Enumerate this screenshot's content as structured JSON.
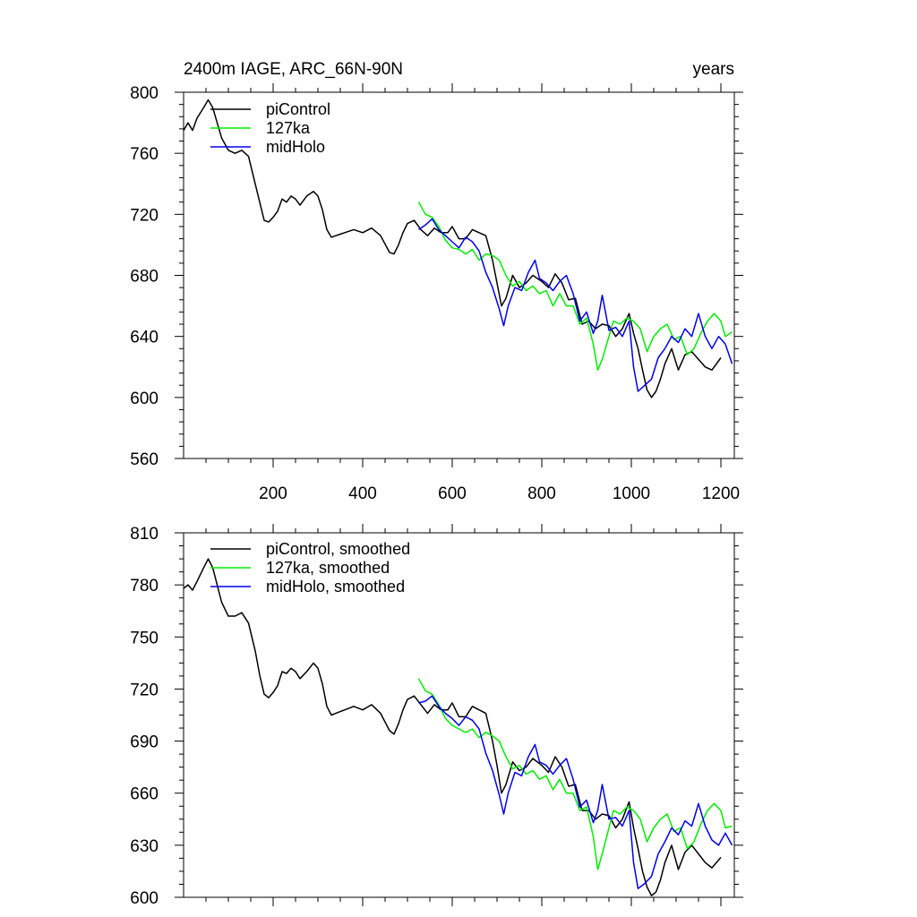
{
  "chart_data": [
    {
      "type": "line",
      "title_left": "2400m IAGE, ARC_66N-90N",
      "title_right": "years",
      "xlabel": "",
      "ylabel": "",
      "xlim": [
        0,
        1230
      ],
      "ylim": [
        560,
        800
      ],
      "xticks": [
        200,
        400,
        600,
        800,
        1000,
        1200
      ],
      "xtick_labels": [
        "200",
        "400",
        "600",
        "800",
        "1000",
        "1200"
      ],
      "yticks": [
        560,
        600,
        640,
        680,
        720,
        760,
        800
      ],
      "ytick_labels": [
        "560",
        "600",
        "640",
        "680",
        "720",
        "760",
        "800"
      ],
      "legend": "top-left",
      "series": [
        {
          "name": "piControl",
          "color": "#000000",
          "x": [
            0,
            10,
            20,
            30,
            45,
            55,
            65,
            75,
            85,
            100,
            115,
            130,
            145,
            160,
            170,
            180,
            190,
            200,
            210,
            220,
            230,
            240,
            250,
            260,
            275,
            290,
            300,
            310,
            320,
            330,
            340,
            350,
            360,
            380,
            400,
            420,
            440,
            460,
            470,
            480,
            490,
            500,
            515,
            530,
            545,
            560,
            575,
            590,
            600,
            615,
            630,
            645,
            660,
            675,
            690,
            700,
            710,
            720,
            735,
            750,
            765,
            780,
            800,
            815,
            830,
            845,
            860,
            875,
            890,
            905,
            920,
            935,
            950,
            965,
            980,
            995,
            1005,
            1015,
            1025,
            1035,
            1045,
            1055,
            1065,
            1075,
            1090,
            1105,
            1120,
            1135,
            1150,
            1165,
            1180,
            1200
          ],
          "y": [
            775,
            780,
            775,
            783,
            790,
            795,
            790,
            780,
            770,
            762,
            760,
            762,
            758,
            740,
            728,
            716,
            715,
            718,
            722,
            730,
            728,
            732,
            730,
            726,
            732,
            735,
            732,
            723,
            710,
            705,
            706,
            707,
            708,
            710,
            708,
            711,
            706,
            695,
            694,
            700,
            708,
            714,
            716,
            710,
            706,
            711,
            708,
            708,
            712,
            704,
            704,
            710,
            708,
            706,
            690,
            675,
            660,
            665,
            680,
            672,
            675,
            680,
            676,
            672,
            681,
            675,
            664,
            665,
            648,
            650,
            645,
            648,
            647,
            640,
            645,
            655,
            642,
            632,
            618,
            605,
            600,
            604,
            612,
            622,
            632,
            618,
            628,
            630,
            625,
            620,
            618,
            626
          ]
        },
        {
          "name": "127ka",
          "color": "#00ee00",
          "x": [
            525,
            540,
            555,
            570,
            585,
            600,
            615,
            630,
            645,
            660,
            675,
            690,
            705,
            720,
            735,
            750,
            765,
            780,
            795,
            810,
            825,
            840,
            855,
            870,
            885,
            900,
            915,
            925,
            935,
            945,
            960,
            975,
            990,
            1005,
            1020,
            1035,
            1050,
            1065,
            1080,
            1095,
            1110,
            1125,
            1140,
            1155,
            1170,
            1185,
            1200,
            1210,
            1225
          ],
          "y": [
            728,
            720,
            718,
            712,
            703,
            698,
            697,
            694,
            697,
            690,
            694,
            693,
            690,
            680,
            673,
            676,
            670,
            673,
            668,
            670,
            660,
            668,
            660,
            660,
            648,
            652,
            635,
            618,
            625,
            635,
            650,
            648,
            652,
            650,
            645,
            630,
            640,
            645,
            648,
            638,
            640,
            628,
            632,
            642,
            650,
            655,
            650,
            640,
            643
          ]
        },
        {
          "name": "midHolo",
          "color": "#0000ee",
          "x": [
            525,
            540,
            555,
            570,
            585,
            600,
            615,
            630,
            645,
            660,
            675,
            690,
            705,
            715,
            725,
            740,
            755,
            770,
            785,
            795,
            810,
            825,
            840,
            855,
            870,
            885,
            900,
            915,
            925,
            935,
            950,
            965,
            980,
            995,
            1005,
            1015,
            1030,
            1045,
            1060,
            1075,
            1090,
            1105,
            1120,
            1135,
            1150,
            1165,
            1180,
            1195,
            1210,
            1225
          ],
          "y": [
            710,
            713,
            717,
            710,
            706,
            702,
            698,
            705,
            702,
            696,
            682,
            672,
            658,
            647,
            660,
            672,
            670,
            682,
            690,
            678,
            675,
            670,
            676,
            680,
            668,
            650,
            656,
            642,
            650,
            667,
            644,
            646,
            640,
            650,
            620,
            604,
            608,
            612,
            626,
            632,
            640,
            636,
            645,
            640,
            655,
            640,
            632,
            640,
            635,
            622
          ]
        }
      ]
    },
    {
      "type": "line",
      "title_left": "",
      "title_right": "",
      "xlabel": "",
      "ylabel": "",
      "xlim": [
        0,
        1230
      ],
      "ylim": [
        600,
        810
      ],
      "xticks": [
        200,
        400,
        600,
        800,
        1000,
        1200
      ],
      "xtick_labels": [],
      "yticks": [
        600,
        630,
        660,
        690,
        720,
        750,
        780,
        810
      ],
      "ytick_labels": [
        "600",
        "630",
        "660",
        "690",
        "720",
        "750",
        "780",
        "810"
      ],
      "legend": "top-left",
      "series": [
        {
          "name": "piControl, smoothed",
          "color": "#000000",
          "x": [
            0,
            10,
            20,
            30,
            45,
            55,
            65,
            75,
            85,
            100,
            115,
            130,
            145,
            160,
            170,
            180,
            190,
            200,
            210,
            220,
            230,
            240,
            250,
            260,
            275,
            290,
            300,
            310,
            320,
            330,
            340,
            350,
            360,
            380,
            400,
            420,
            440,
            460,
            470,
            480,
            490,
            500,
            515,
            530,
            545,
            560,
            575,
            590,
            600,
            615,
            630,
            645,
            660,
            675,
            690,
            700,
            710,
            720,
            735,
            750,
            765,
            780,
            800,
            815,
            830,
            845,
            860,
            875,
            890,
            905,
            920,
            935,
            950,
            965,
            980,
            995,
            1005,
            1015,
            1025,
            1035,
            1045,
            1055,
            1065,
            1075,
            1090,
            1105,
            1120,
            1135,
            1150,
            1165,
            1180,
            1200
          ],
          "y": [
            778,
            780,
            777,
            782,
            790,
            795,
            790,
            780,
            770,
            762,
            762,
            764,
            758,
            742,
            728,
            717,
            715,
            718,
            722,
            730,
            729,
            732,
            730,
            726,
            730,
            735,
            732,
            723,
            710,
            705,
            706,
            707,
            708,
            710,
            708,
            711,
            706,
            696,
            694,
            700,
            708,
            714,
            716,
            711,
            706,
            711,
            708,
            708,
            712,
            704,
            704,
            710,
            708,
            706,
            690,
            676,
            660,
            665,
            678,
            673,
            675,
            680,
            676,
            672,
            681,
            675,
            664,
            665,
            650,
            650,
            645,
            648,
            647,
            640,
            645,
            655,
            640,
            628,
            615,
            606,
            601,
            603,
            610,
            620,
            630,
            616,
            626,
            630,
            625,
            620,
            617,
            623
          ]
        },
        {
          "name": "127ka, smoothed",
          "color": "#00ee00",
          "x": [
            525,
            540,
            555,
            570,
            585,
            600,
            615,
            630,
            645,
            660,
            675,
            690,
            705,
            720,
            735,
            750,
            765,
            780,
            795,
            810,
            825,
            840,
            855,
            870,
            885,
            900,
            915,
            925,
            935,
            945,
            960,
            975,
            990,
            1005,
            1020,
            1035,
            1050,
            1065,
            1080,
            1095,
            1110,
            1125,
            1140,
            1155,
            1170,
            1185,
            1200,
            1210,
            1225
          ],
          "y": [
            726,
            719,
            717,
            711,
            703,
            699,
            697,
            695,
            697,
            692,
            695,
            693,
            690,
            681,
            674,
            676,
            671,
            673,
            668,
            670,
            662,
            668,
            660,
            660,
            650,
            652,
            635,
            616,
            625,
            635,
            650,
            648,
            652,
            650,
            645,
            632,
            640,
            645,
            648,
            638,
            640,
            628,
            632,
            642,
            650,
            654,
            650,
            640,
            641
          ]
        },
        {
          "name": "midHolo, smoothed",
          "color": "#0000ee",
          "x": [
            525,
            540,
            555,
            570,
            585,
            600,
            615,
            630,
            645,
            660,
            675,
            690,
            705,
            715,
            725,
            740,
            755,
            770,
            785,
            795,
            810,
            825,
            840,
            855,
            870,
            885,
            900,
            915,
            925,
            935,
            950,
            965,
            980,
            995,
            1005,
            1015,
            1030,
            1045,
            1060,
            1075,
            1090,
            1105,
            1120,
            1135,
            1150,
            1165,
            1180,
            1195,
            1210,
            1225
          ],
          "y": [
            712,
            713,
            716,
            710,
            706,
            703,
            699,
            704,
            702,
            697,
            683,
            673,
            659,
            648,
            660,
            672,
            670,
            681,
            688,
            678,
            676,
            671,
            676,
            680,
            668,
            652,
            656,
            643,
            650,
            665,
            645,
            646,
            641,
            650,
            620,
            605,
            608,
            612,
            625,
            632,
            640,
            636,
            644,
            641,
            654,
            641,
            633,
            630,
            637,
            630
          ]
        }
      ]
    }
  ]
}
